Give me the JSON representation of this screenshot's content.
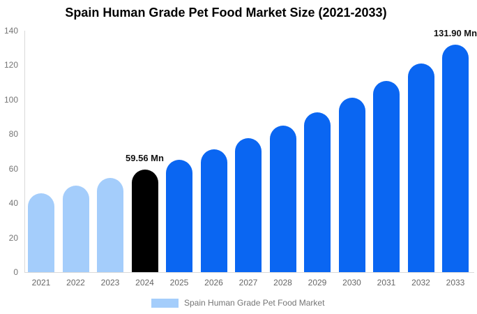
{
  "chart_data": {
    "type": "bar",
    "title": "Spain Human Grade Pet Food Market Size (2021-2033)",
    "categories": [
      "2021",
      "2022",
      "2023",
      "2024",
      "2025",
      "2026",
      "2027",
      "2028",
      "2029",
      "2030",
      "2031",
      "2032",
      "2033"
    ],
    "values": [
      45.69,
      49.91,
      54.52,
      59.56,
      65.06,
      71.08,
      77.64,
      84.81,
      92.65,
      101.21,
      110.56,
      120.78,
      131.9
    ],
    "unit": "Mn",
    "bar_roles": [
      "historical",
      "historical",
      "historical",
      "base_year",
      "forecast",
      "forecast",
      "forecast",
      "forecast",
      "forecast",
      "forecast",
      "forecast",
      "forecast",
      "forecast"
    ],
    "annotations": [
      {
        "category": "2024",
        "label": "59.56 Mn"
      },
      {
        "category": "2033",
        "label": "131.90 Mn"
      }
    ],
    "y_ticks": [
      0,
      20,
      40,
      60,
      80,
      100,
      120,
      140
    ],
    "ylim": [
      0,
      140
    ],
    "xlabel": "",
    "ylabel": "",
    "grid": false,
    "legend_position": "bottom",
    "legend": [
      {
        "label": "Spain Human Grade Pet Food Market",
        "swatch_role": "historical"
      }
    ],
    "palette": {
      "historical": "#a4cdfb",
      "base_year": "#000000",
      "forecast": "#0a66f2",
      "axis_line": "#d9d9d9",
      "tick_text": "#757575",
      "xlabel_text": "#666666",
      "legend_text": "#757575",
      "annotation_text": "#111111",
      "title_text": "#000000"
    }
  }
}
